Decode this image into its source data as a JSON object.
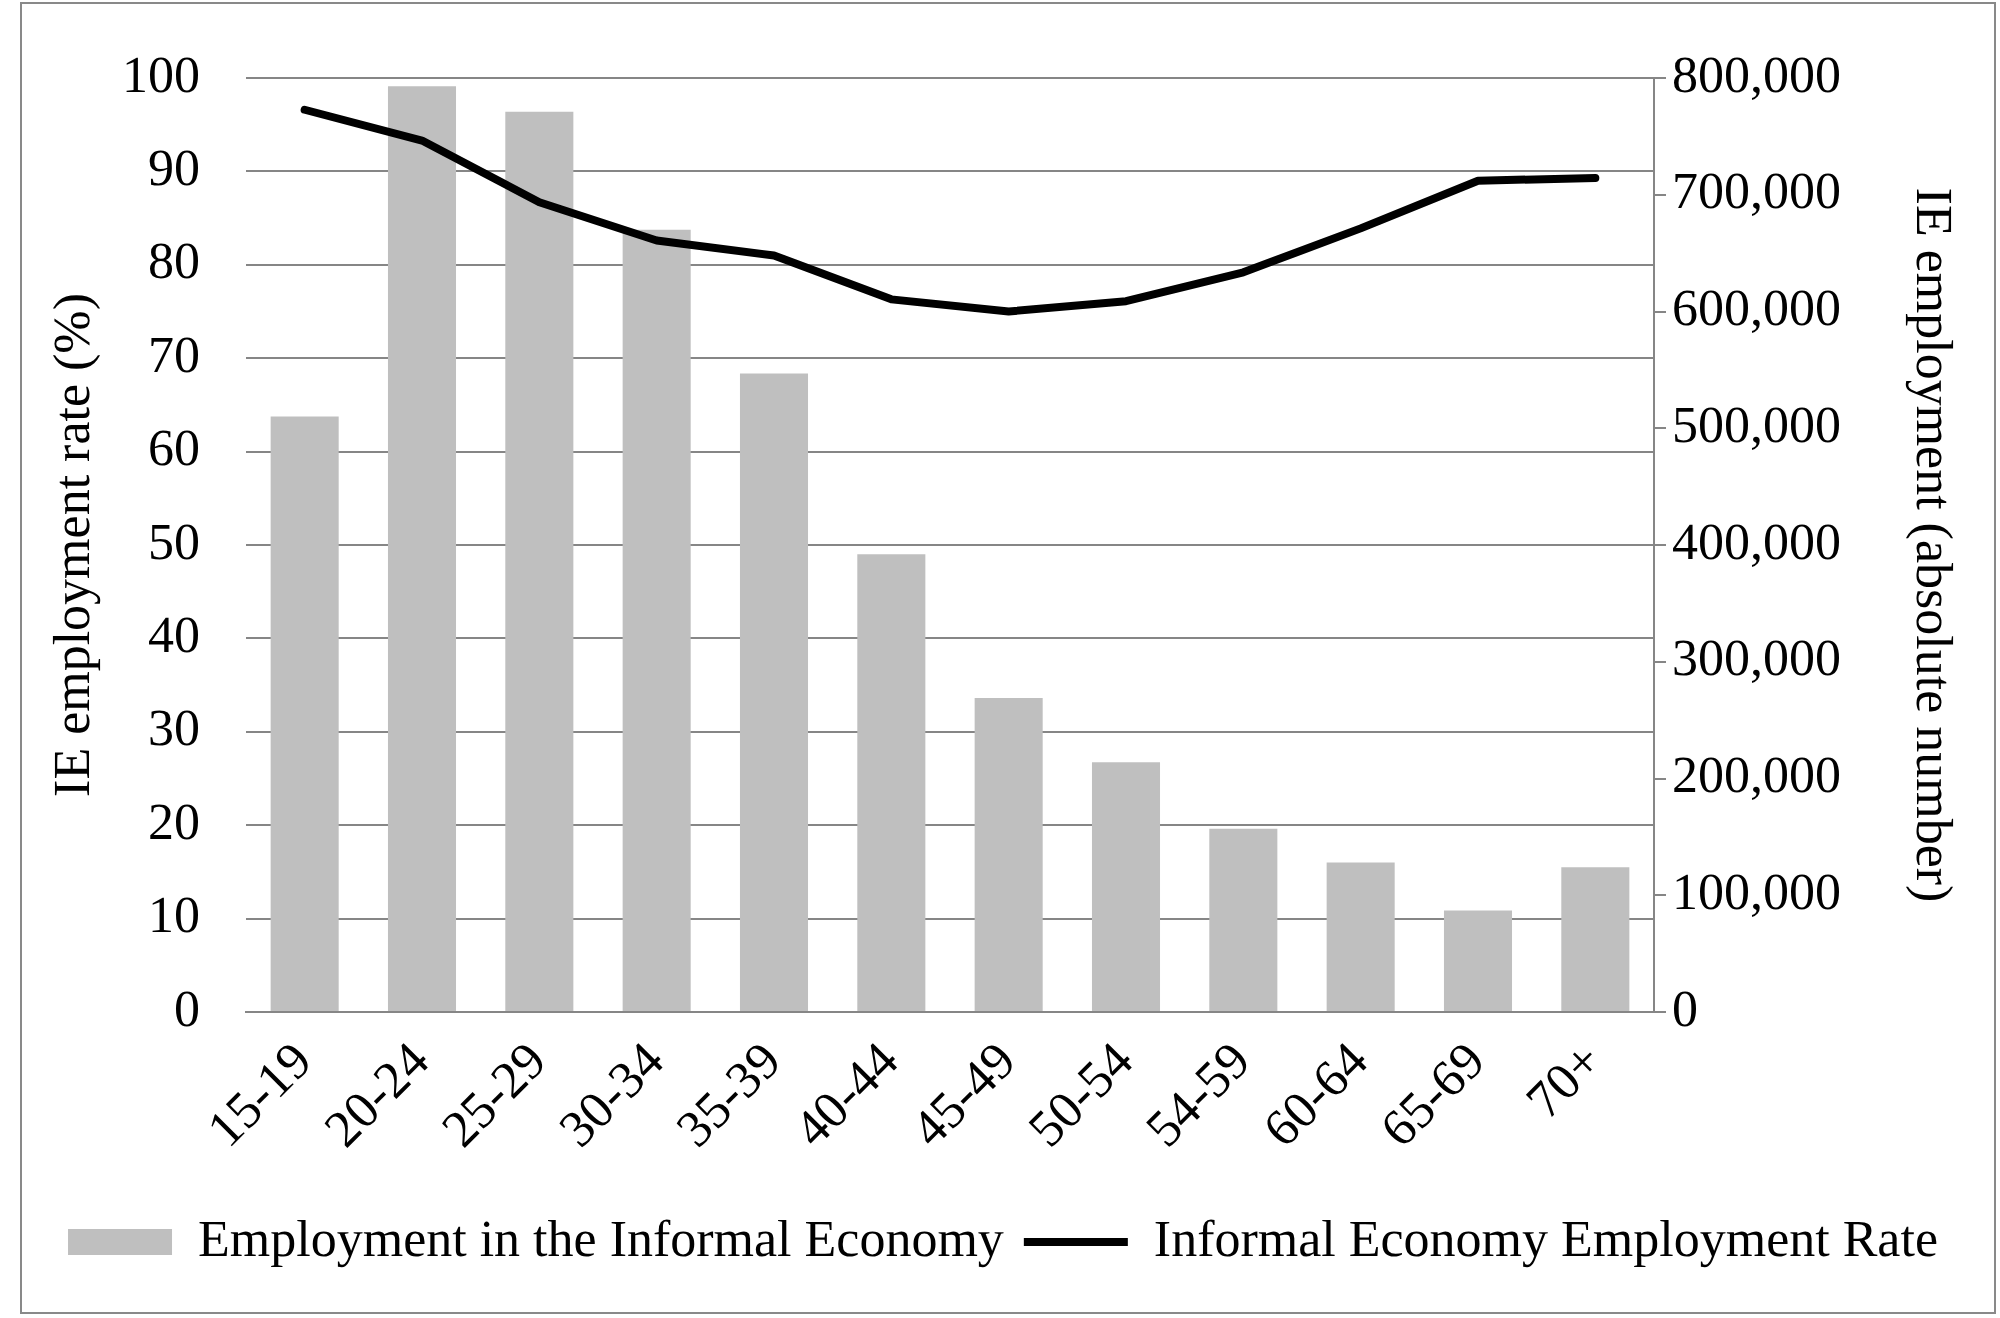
{
  "chart_data": {
    "type": "bar",
    "categories": [
      "15-19",
      "20-24",
      "25-29",
      "30-34",
      "35-39",
      "40-44",
      "45-49",
      "50-54",
      "54-59",
      "60-64",
      "65-69",
      "70+"
    ],
    "ylabel": "IE employment rate (%)",
    "y2label": "IE employment (absolute number)",
    "ylim": [
      0,
      100
    ],
    "yticks": [
      0,
      10,
      20,
      30,
      40,
      50,
      60,
      70,
      80,
      90,
      100
    ],
    "y2lim": [
      0,
      800000
    ],
    "y2ticks": [
      0,
      {
        "value": 100000,
        "label": "100,000"
      },
      {
        "value": 200000,
        "label": "200,000"
      },
      {
        "value": 300000,
        "label": "300,000"
      },
      {
        "value": 400000,
        "label": "400,000"
      },
      {
        "value": 500000,
        "label": "500,000"
      },
      {
        "value": 600000,
        "label": "600,000"
      },
      {
        "value": 700000,
        "label": "700,000"
      },
      {
        "value": 800000,
        "label": "800,000"
      }
    ],
    "series": [
      {
        "name": "Employment in the Informal Economy",
        "axis": "y2",
        "color": "#bfbfbf",
        "values": [
          510000,
          793000,
          771000,
          670000,
          547000,
          392000,
          269000,
          214000,
          157000,
          128000,
          87000,
          124000
        ]
      },
      {
        "name": "Informal Economy Employment Rate",
        "type": "line",
        "axis": "y",
        "color": "#000000",
        "values": [
          96.6,
          93.3,
          86.7,
          82.6,
          81.0,
          76.3,
          75.0,
          76.1,
          79.2,
          83.9,
          89.0,
          89.3
        ]
      }
    ],
    "grid": "y",
    "legend": "bottom",
    "marker": "none",
    "line_style": "solid"
  }
}
